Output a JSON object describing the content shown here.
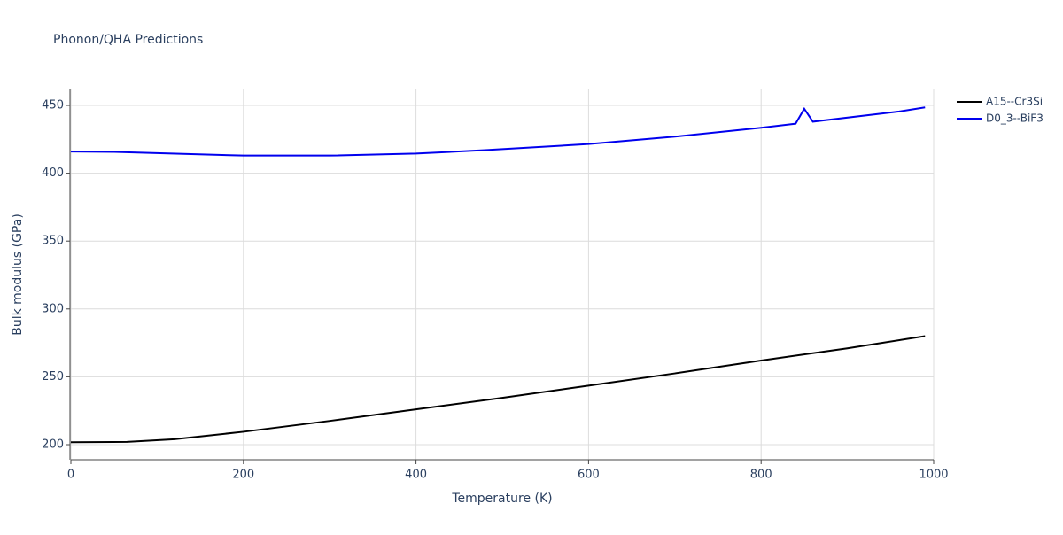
{
  "chart_data": {
    "type": "line",
    "title": "Phonon/QHA Predictions",
    "x_label": "Temperature (K)",
    "y_label": "Bulk modulus (GPa)",
    "xlim": [
      0,
      1000
    ],
    "xticks": [
      0,
      200,
      400,
      600,
      800,
      1000
    ],
    "ylim": [
      188.9,
      462.4
    ],
    "yticks": [
      200,
      250,
      300,
      350,
      400,
      450
    ],
    "grid": true,
    "legend": "right",
    "series": [
      {
        "name": "A15--Cr3Si",
        "color": "#000000",
        "x": [
          0,
          65,
          120,
          200,
          300,
          400,
          500,
          600,
          700,
          800,
          900,
          990
        ],
        "values": [
          201.8,
          202,
          204,
          209.5,
          217.5,
          226,
          234.5,
          243.5,
          252.5,
          262,
          271,
          280
        ]
      },
      {
        "name": "D0_3--BiF3",
        "color": "#0000ee",
        "x": [
          0,
          50,
          200,
          300,
          400,
          480,
          600,
          700,
          800,
          840,
          850,
          860,
          960,
          990
        ],
        "values": [
          416,
          415.7,
          413,
          413,
          414.5,
          417,
          421.5,
          427,
          433.5,
          436.5,
          447.5,
          438,
          445.5,
          448.5
        ]
      }
    ]
  }
}
